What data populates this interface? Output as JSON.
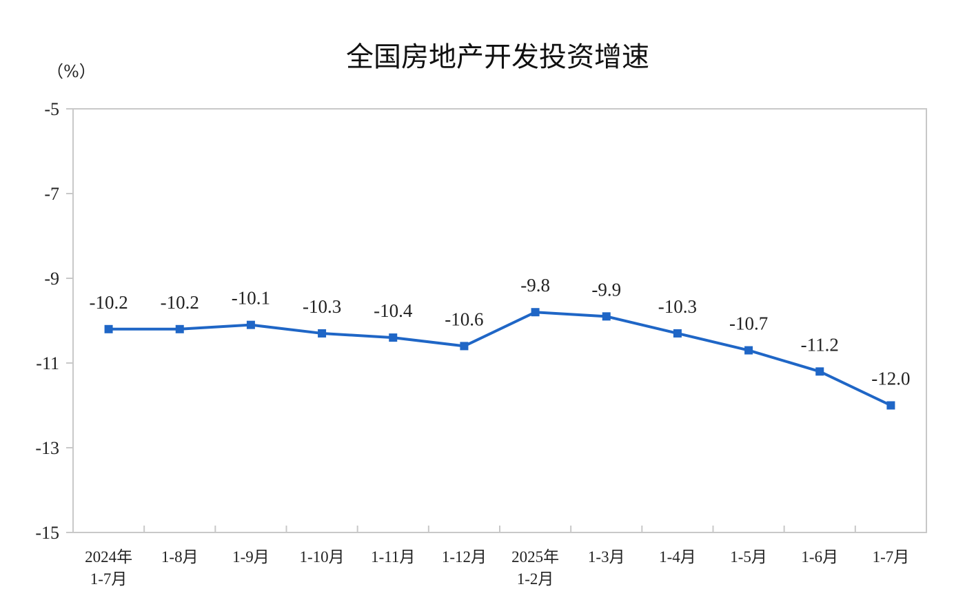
{
  "chart_data": {
    "type": "line",
    "title": "全国房地产开发投资增速",
    "unit_label": "（%）",
    "ylim": [
      -15,
      -5
    ],
    "yticks": [
      -5,
      -7,
      -9,
      -11,
      -13,
      -15
    ],
    "ytick_labels": [
      "-5",
      "-7",
      "-9",
      "-11",
      "-13",
      "-15"
    ],
    "grid": false,
    "legend": "none",
    "categories": [
      [
        "2024年",
        "1-7月"
      ],
      [
        "1-8月"
      ],
      [
        "1-9月"
      ],
      [
        "1-10月"
      ],
      [
        "1-11月"
      ],
      [
        "1-12月"
      ],
      [
        "2025年",
        "1-2月"
      ],
      [
        "1-3月"
      ],
      [
        "1-4月"
      ],
      [
        "1-5月"
      ],
      [
        "1-6月"
      ],
      [
        "1-7月"
      ]
    ],
    "series": [
      {
        "values": [
          -10.2,
          -10.2,
          -10.1,
          -10.3,
          -10.4,
          -10.6,
          -9.8,
          -9.9,
          -10.3,
          -10.7,
          -11.2,
          -12.0
        ],
        "labels": [
          "-10.2",
          "-10.2",
          "-10.1",
          "-10.3",
          "-10.4",
          "-10.6",
          "-9.8",
          "-9.9",
          "-10.3",
          "-10.7",
          "-11.2",
          "-12.0"
        ],
        "color": "#1f66c6"
      }
    ],
    "colors": {
      "line": "#1f66c6",
      "axis": "#c8c8c8",
      "text": "#222222"
    }
  }
}
